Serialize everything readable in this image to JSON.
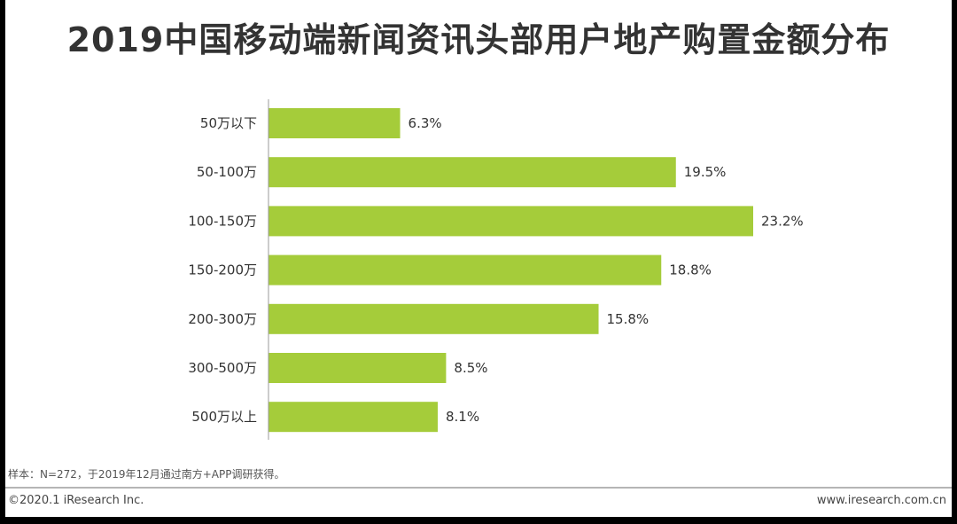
{
  "title": "2019中国移动端新闻资讯头部用户地产购置金额分布",
  "source_note": "样本：N=272，于2019年12月通过南方+APP调研获得。",
  "footer": {
    "copyright": "©2020.1 iResearch Inc.",
    "website": "www.iresearch.com.cn"
  },
  "colors": {
    "bar": "#a5cc3a",
    "axis": "#999999"
  },
  "chart_data": {
    "type": "bar",
    "orientation": "horizontal",
    "title": "2019中国移动端新闻资讯头部用户地产购置金额分布",
    "categories": [
      "50万以下",
      "50-100万",
      "100-150万",
      "150-200万",
      "200-300万",
      "300-500万",
      "500万以上"
    ],
    "values": [
      6.3,
      19.5,
      23.2,
      18.8,
      15.8,
      8.5,
      8.1
    ],
    "value_labels": [
      "6.3%",
      "19.5%",
      "23.2%",
      "18.8%",
      "15.8%",
      "8.5%",
      "8.1%"
    ],
    "unit": "%",
    "xlim": [
      0,
      23.2
    ],
    "grid": false,
    "legend": "none"
  }
}
